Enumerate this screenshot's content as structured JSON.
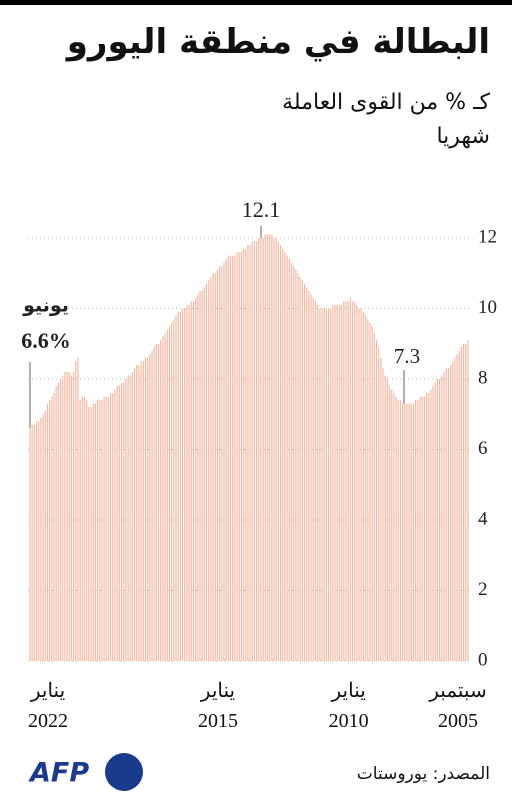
{
  "chart_data": {
    "type": "bar",
    "title": "البطالة في منطقة اليورو",
    "subtitle": "كـ % من القوى العاملة",
    "frequency": "شهريا",
    "source": "المصدر: يوروستات",
    "logo": "AFP",
    "annotations": [
      "12.1",
      "7.3",
      "يونيو",
      "6.6%"
    ],
    "color": "#f4b8a2",
    "reverse_x": true,
    "grid": true,
    "ylim": [
      0,
      12
    ],
    "yticks": [
      0,
      2,
      4,
      6,
      8,
      10,
      12
    ],
    "categories": [
      "سبتمبر 2005",
      null,
      null,
      null,
      null,
      null,
      null,
      null,
      null,
      null,
      null,
      null,
      null,
      null,
      null,
      null,
      null,
      null,
      null,
      null,
      null,
      null,
      null,
      null,
      null,
      null,
      null,
      null,
      null,
      null,
      null,
      null,
      null,
      null,
      null,
      null,
      null,
      null,
      null,
      null,
      null,
      null,
      null,
      null,
      null,
      null,
      null,
      null,
      null,
      null,
      null,
      null,
      "يناير 2010",
      null,
      null,
      null,
      null,
      null,
      null,
      null,
      null,
      null,
      null,
      null,
      null,
      null,
      null,
      null,
      null,
      null,
      null,
      null,
      null,
      null,
      null,
      null,
      null,
      null,
      null,
      null,
      null,
      null,
      null,
      null,
      null,
      null,
      null,
      null,
      null,
      null,
      null,
      null,
      null,
      null,
      null,
      null,
      null,
      null,
      null,
      null,
      null,
      null,
      null,
      null,
      null,
      null,
      null,
      null,
      null,
      null,
      null,
      null,
      "يناير 2015",
      null,
      null,
      null,
      null,
      null,
      null,
      null,
      null,
      null,
      null,
      null,
      null,
      null,
      null,
      null,
      null,
      null,
      null,
      null,
      null,
      null,
      null,
      null,
      null,
      null,
      null,
      null,
      null,
      null,
      null,
      null,
      null,
      null,
      null,
      null,
      null,
      null,
      null,
      null,
      null,
      null,
      null,
      null,
      null,
      null,
      null,
      null,
      null,
      null,
      null,
      null,
      null,
      null,
      null,
      null,
      null,
      null,
      null,
      null,
      null,
      null,
      null,
      null,
      null,
      null,
      null,
      null,
      null,
      null,
      null,
      null,
      null,
      null,
      null,
      null,
      null,
      null,
      null,
      null,
      null,
      null,
      null,
      null,
      "يناير 2022",
      null,
      null,
      null,
      null,
      null
    ],
    "values": [
      9.1,
      9.0,
      9.0,
      8.9,
      8.8,
      8.7,
      8.6,
      8.5,
      8.4,
      8.3,
      8.3,
      8.2,
      8.1,
      8.0,
      8.0,
      7.9,
      7.8,
      7.7,
      7.6,
      7.6,
      7.5,
      7.5,
      7.5,
      7.4,
      7.4,
      7.3,
      7.3,
      7.3,
      7.3,
      7.3,
      7.3,
      7.4,
      7.4,
      7.5,
      7.6,
      7.7,
      7.8,
      8.0,
      8.1,
      8.3,
      8.6,
      8.9,
      9.1,
      9.3,
      9.5,
      9.6,
      9.7,
      9.8,
      9.9,
      10.0,
      10.0,
      10.1,
      10.2,
      10.2,
      10.3,
      10.2,
      10.2,
      10.2,
      10.1,
      10.1,
      10.1,
      10.1,
      10.1,
      10.0,
      10.0,
      10.0,
      10.0,
      10.0,
      10.0,
      10.1,
      10.2,
      10.3,
      10.4,
      10.5,
      10.6,
      10.7,
      10.8,
      10.9,
      11.0,
      11.1,
      11.2,
      11.3,
      11.4,
      11.5,
      11.6,
      11.7,
      11.8,
      11.9,
      12.0,
      12.0,
      12.1,
      12.1,
      12.1,
      12.1,
      12.0,
      12.0,
      12.0,
      11.9,
      11.9,
      11.9,
      11.8,
      11.8,
      11.7,
      11.7,
      11.6,
      11.6,
      11.6,
      11.5,
      11.5,
      11.5,
      11.5,
      11.4,
      11.3,
      11.2,
      11.2,
      11.1,
      11.0,
      11.0,
      10.9,
      10.8,
      10.7,
      10.6,
      10.5,
      10.5,
      10.4,
      10.3,
      10.2,
      10.2,
      10.1,
      10.1,
      10.0,
      10.0,
      9.9,
      9.9,
      9.8,
      9.7,
      9.6,
      9.5,
      9.4,
      9.3,
      9.2,
      9.1,
      9.0,
      9.0,
      8.9,
      8.8,
      8.7,
      8.6,
      8.6,
      8.5,
      8.5,
      8.4,
      8.4,
      8.3,
      8.2,
      8.1,
      8.1,
      8.0,
      7.9,
      7.9,
      7.8,
      7.8,
      7.7,
      7.6,
      7.6,
      7.5,
      7.5,
      7.5,
      7.4,
      7.4,
      7.4,
      7.3,
      7.3,
      7.2,
      7.2,
      7.4,
      7.5,
      7.5,
      7.4,
      8.6,
      8.5,
      8.2,
      8.1,
      8.2,
      8.2,
      8.2,
      8.1,
      8.0,
      7.9,
      7.8,
      7.6,
      7.5,
      7.4,
      7.3,
      7.1,
      7.0,
      6.9,
      6.8,
      6.8,
      6.7,
      6.7,
      6.6
    ]
  }
}
